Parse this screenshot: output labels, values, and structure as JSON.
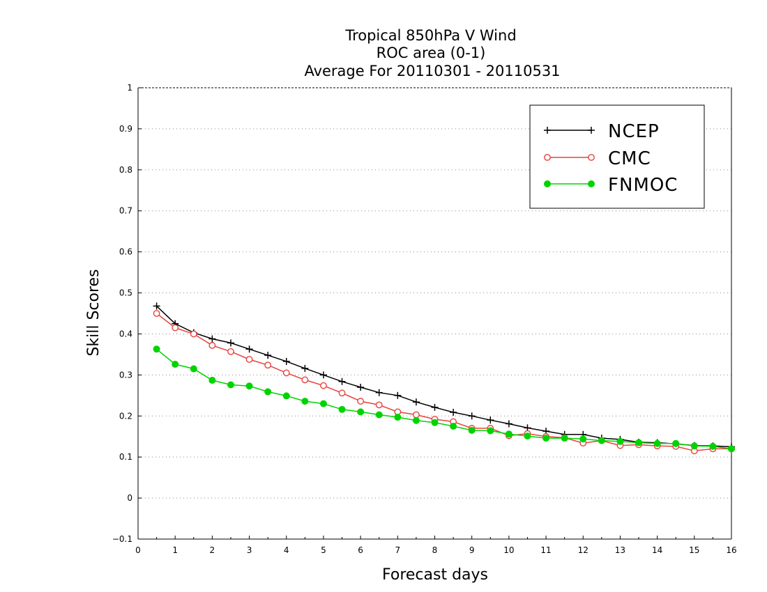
{
  "chart_data": {
    "type": "line",
    "title_lines": [
      "Tropical 850hPa V Wind",
      "ROC area (0-1)",
      "Average For 20110301 - 20110531"
    ],
    "xlabel": "Forecast days",
    "ylabel": "Skill Scores",
    "xlim": [
      0,
      16
    ],
    "ylim": [
      -0.1,
      1
    ],
    "x_ticks": [
      0,
      1,
      2,
      3,
      4,
      5,
      6,
      7,
      8,
      9,
      10,
      11,
      12,
      13,
      14,
      15,
      16
    ],
    "x_tick_labels": [
      "0",
      "1",
      "2",
      "3",
      "4",
      "5",
      "6",
      "7",
      "8",
      "9",
      "10",
      "11",
      "12",
      "13",
      "14",
      "15",
      "16"
    ],
    "y_ticks": [
      -0.1,
      0,
      0.1,
      0.2,
      0.3,
      0.4,
      0.5,
      0.6,
      0.7,
      0.8,
      0.9,
      1
    ],
    "y_tick_labels": [
      "−0.1",
      "0",
      "0.1",
      "0.2",
      "0.3",
      "0.4",
      "0.5",
      "0.6",
      "0.7",
      "0.8",
      "0.9",
      "1"
    ],
    "grid": "horizontal dotted",
    "legend_position": "top-right",
    "x": [
      0.5,
      1,
      1.5,
      2,
      2.5,
      3,
      3.5,
      4,
      4.5,
      5,
      5.5,
      6,
      6.5,
      7,
      7.5,
      8,
      8.5,
      9,
      9.5,
      10,
      10.5,
      11,
      11.5,
      12,
      12.5,
      13,
      13.5,
      14,
      14.5,
      15,
      15.5,
      16
    ],
    "series": [
      {
        "name": "NCEP",
        "color": "#000000",
        "marker": "plus",
        "values": [
          0.468,
          0.425,
          0.403,
          0.388,
          0.378,
          0.363,
          0.348,
          0.333,
          0.316,
          0.3,
          0.284,
          0.27,
          0.257,
          0.25,
          0.234,
          0.221,
          0.209,
          0.2,
          0.19,
          0.181,
          0.171,
          0.163,
          0.155,
          0.155,
          0.146,
          0.143,
          0.136,
          0.135,
          0.132,
          0.128,
          0.127,
          0.125
        ]
      },
      {
        "name": "CMC",
        "color": "#e8413c",
        "marker": "open-circle",
        "values": [
          0.45,
          0.415,
          0.4,
          0.372,
          0.357,
          0.338,
          0.324,
          0.305,
          0.288,
          0.274,
          0.256,
          0.236,
          0.227,
          0.21,
          0.203,
          0.192,
          0.186,
          0.17,
          0.17,
          0.152,
          0.157,
          0.15,
          0.147,
          0.134,
          0.14,
          0.128,
          0.13,
          0.127,
          0.126,
          0.115,
          0.12,
          0.12
        ]
      },
      {
        "name": "FNMOC",
        "color": "#00d400",
        "marker": "filled-circle",
        "values": [
          0.363,
          0.326,
          0.315,
          0.287,
          0.276,
          0.273,
          0.259,
          0.249,
          0.236,
          0.23,
          0.216,
          0.21,
          0.203,
          0.197,
          0.189,
          0.184,
          0.175,
          0.165,
          0.164,
          0.156,
          0.151,
          0.146,
          0.146,
          0.144,
          0.14,
          0.138,
          0.135,
          0.133,
          0.133,
          0.127,
          0.126,
          0.12
        ]
      }
    ]
  }
}
